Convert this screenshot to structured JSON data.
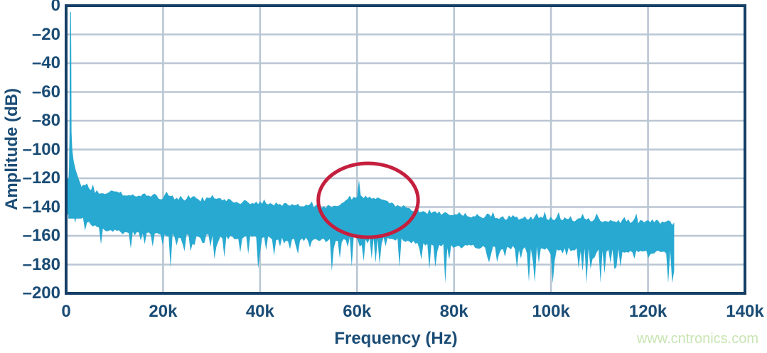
{
  "colors": {
    "trace": "#28A9D1",
    "axis_border": "#153F66",
    "grid": "#B9C6D3",
    "text": "#1A4C75",
    "annotation": "#C51F3E",
    "watermark": "#C8E5B3",
    "background": "#FFFFFF"
  },
  "watermark": {
    "text": "www.cntronics.com"
  },
  "chart_data": {
    "type": "line",
    "title": "",
    "xlabel": "Frequency (Hz)",
    "ylabel": "Amplitude (dB)",
    "xlim_khz": [
      0,
      140
    ],
    "ylim_db": [
      -200,
      0
    ],
    "grid": true,
    "legend": "none",
    "x_ticks": [
      {
        "v": 0,
        "label": "0"
      },
      {
        "v": 20,
        "label": "20k"
      },
      {
        "v": 40,
        "label": "40k"
      },
      {
        "v": 60,
        "label": "60k"
      },
      {
        "v": 80,
        "label": "80k"
      },
      {
        "v": 100,
        "label": "100k"
      },
      {
        "v": 120,
        "label": "120k"
      },
      {
        "v": 140,
        "label": "140k"
      }
    ],
    "y_ticks": [
      {
        "v": 0,
        "label": "0"
      },
      {
        "v": -20,
        "label": "–20"
      },
      {
        "v": -40,
        "label": "–40"
      },
      {
        "v": -60,
        "label": "–60"
      },
      {
        "v": -80,
        "label": "–80"
      },
      {
        "v": -100,
        "label": "–100"
      },
      {
        "v": -120,
        "label": "–120"
      },
      {
        "v": -140,
        "label": "–140"
      },
      {
        "v": -160,
        "label": "–160"
      },
      {
        "v": -180,
        "label": "–180"
      },
      {
        "v": -200,
        "label": "–200"
      }
    ],
    "features": {
      "fundamental": {
        "freq_khz": 0.9,
        "peak_db": -4
      },
      "spur": {
        "freq_khz": 60.4,
        "peak_db": -121
      },
      "spur_cluster_range_khz": [
        57,
        68
      ],
      "noise_floor_db_at_5khz": -127,
      "noise_floor_db_at_125khz": -151,
      "spectrum_end_khz": 125.4
    },
    "series": [
      {
        "name": "fft-noise-floor-envelope",
        "comment": "points are [freq_kHz, top_envelope_dB, solid_fill_bottom_dB]; narrow random spikes extend 4-28 dB below bottom",
        "envelope": [
          [
            0.2,
            -121,
            -138
          ],
          [
            1.8,
            -120,
            -140
          ],
          [
            3,
            -125,
            -146
          ],
          [
            5,
            -128,
            -150
          ],
          [
            8,
            -130,
            -154
          ],
          [
            12,
            -131,
            -157
          ],
          [
            16,
            -132,
            -157
          ],
          [
            20,
            -133,
            -158
          ],
          [
            25,
            -134,
            -159
          ],
          [
            30,
            -135,
            -159
          ],
          [
            35,
            -136,
            -160
          ],
          [
            40,
            -137,
            -160
          ],
          [
            45,
            -138,
            -161
          ],
          [
            50,
            -139,
            -161
          ],
          [
            54,
            -140,
            -162
          ],
          [
            56,
            -139,
            -162
          ],
          [
            58,
            -135,
            -161
          ],
          [
            60,
            -133,
            -160
          ],
          [
            62,
            -133,
            -160
          ],
          [
            64,
            -134,
            -160
          ],
          [
            66,
            -136,
            -160
          ],
          [
            68,
            -139,
            -161
          ],
          [
            72,
            -142,
            -163
          ],
          [
            76,
            -144,
            -165
          ],
          [
            80,
            -145,
            -166
          ],
          [
            85,
            -146,
            -166
          ],
          [
            90,
            -147,
            -167
          ],
          [
            95,
            -147,
            -167
          ],
          [
            100,
            -148,
            -168
          ],
          [
            105,
            -149,
            -168
          ],
          [
            110,
            -149,
            -169
          ],
          [
            115,
            -150,
            -169
          ],
          [
            120,
            -150,
            -170
          ],
          [
            125.4,
            -151,
            -170
          ]
        ]
      },
      {
        "name": "fundamental-peak",
        "shape": [
          [
            0.45,
            -125
          ],
          [
            0.6,
            -112
          ],
          [
            0.7,
            -88
          ],
          [
            0.76,
            -30
          ],
          [
            0.84,
            -4
          ],
          [
            1.0,
            -4.5
          ],
          [
            1.06,
            -30
          ],
          [
            1.12,
            -88
          ],
          [
            1.28,
            -100
          ],
          [
            1.55,
            -108
          ],
          [
            1.95,
            -114
          ],
          [
            2.55,
            -120
          ],
          [
            3.2,
            -126
          ],
          [
            3.2,
            -148
          ],
          [
            0.45,
            -148
          ]
        ]
      },
      {
        "name": "spur-peak",
        "shape": [
          [
            59.9,
            -136
          ],
          [
            60.4,
            -121
          ],
          [
            60.9,
            -136
          ],
          [
            60.9,
            -146
          ],
          [
            59.9,
            -146
          ]
        ]
      }
    ],
    "annotation_ellipse": {
      "center_khz": 62.3,
      "center_db": -135.3,
      "rx_khz": 10.3,
      "ry_db": 25.7
    }
  }
}
